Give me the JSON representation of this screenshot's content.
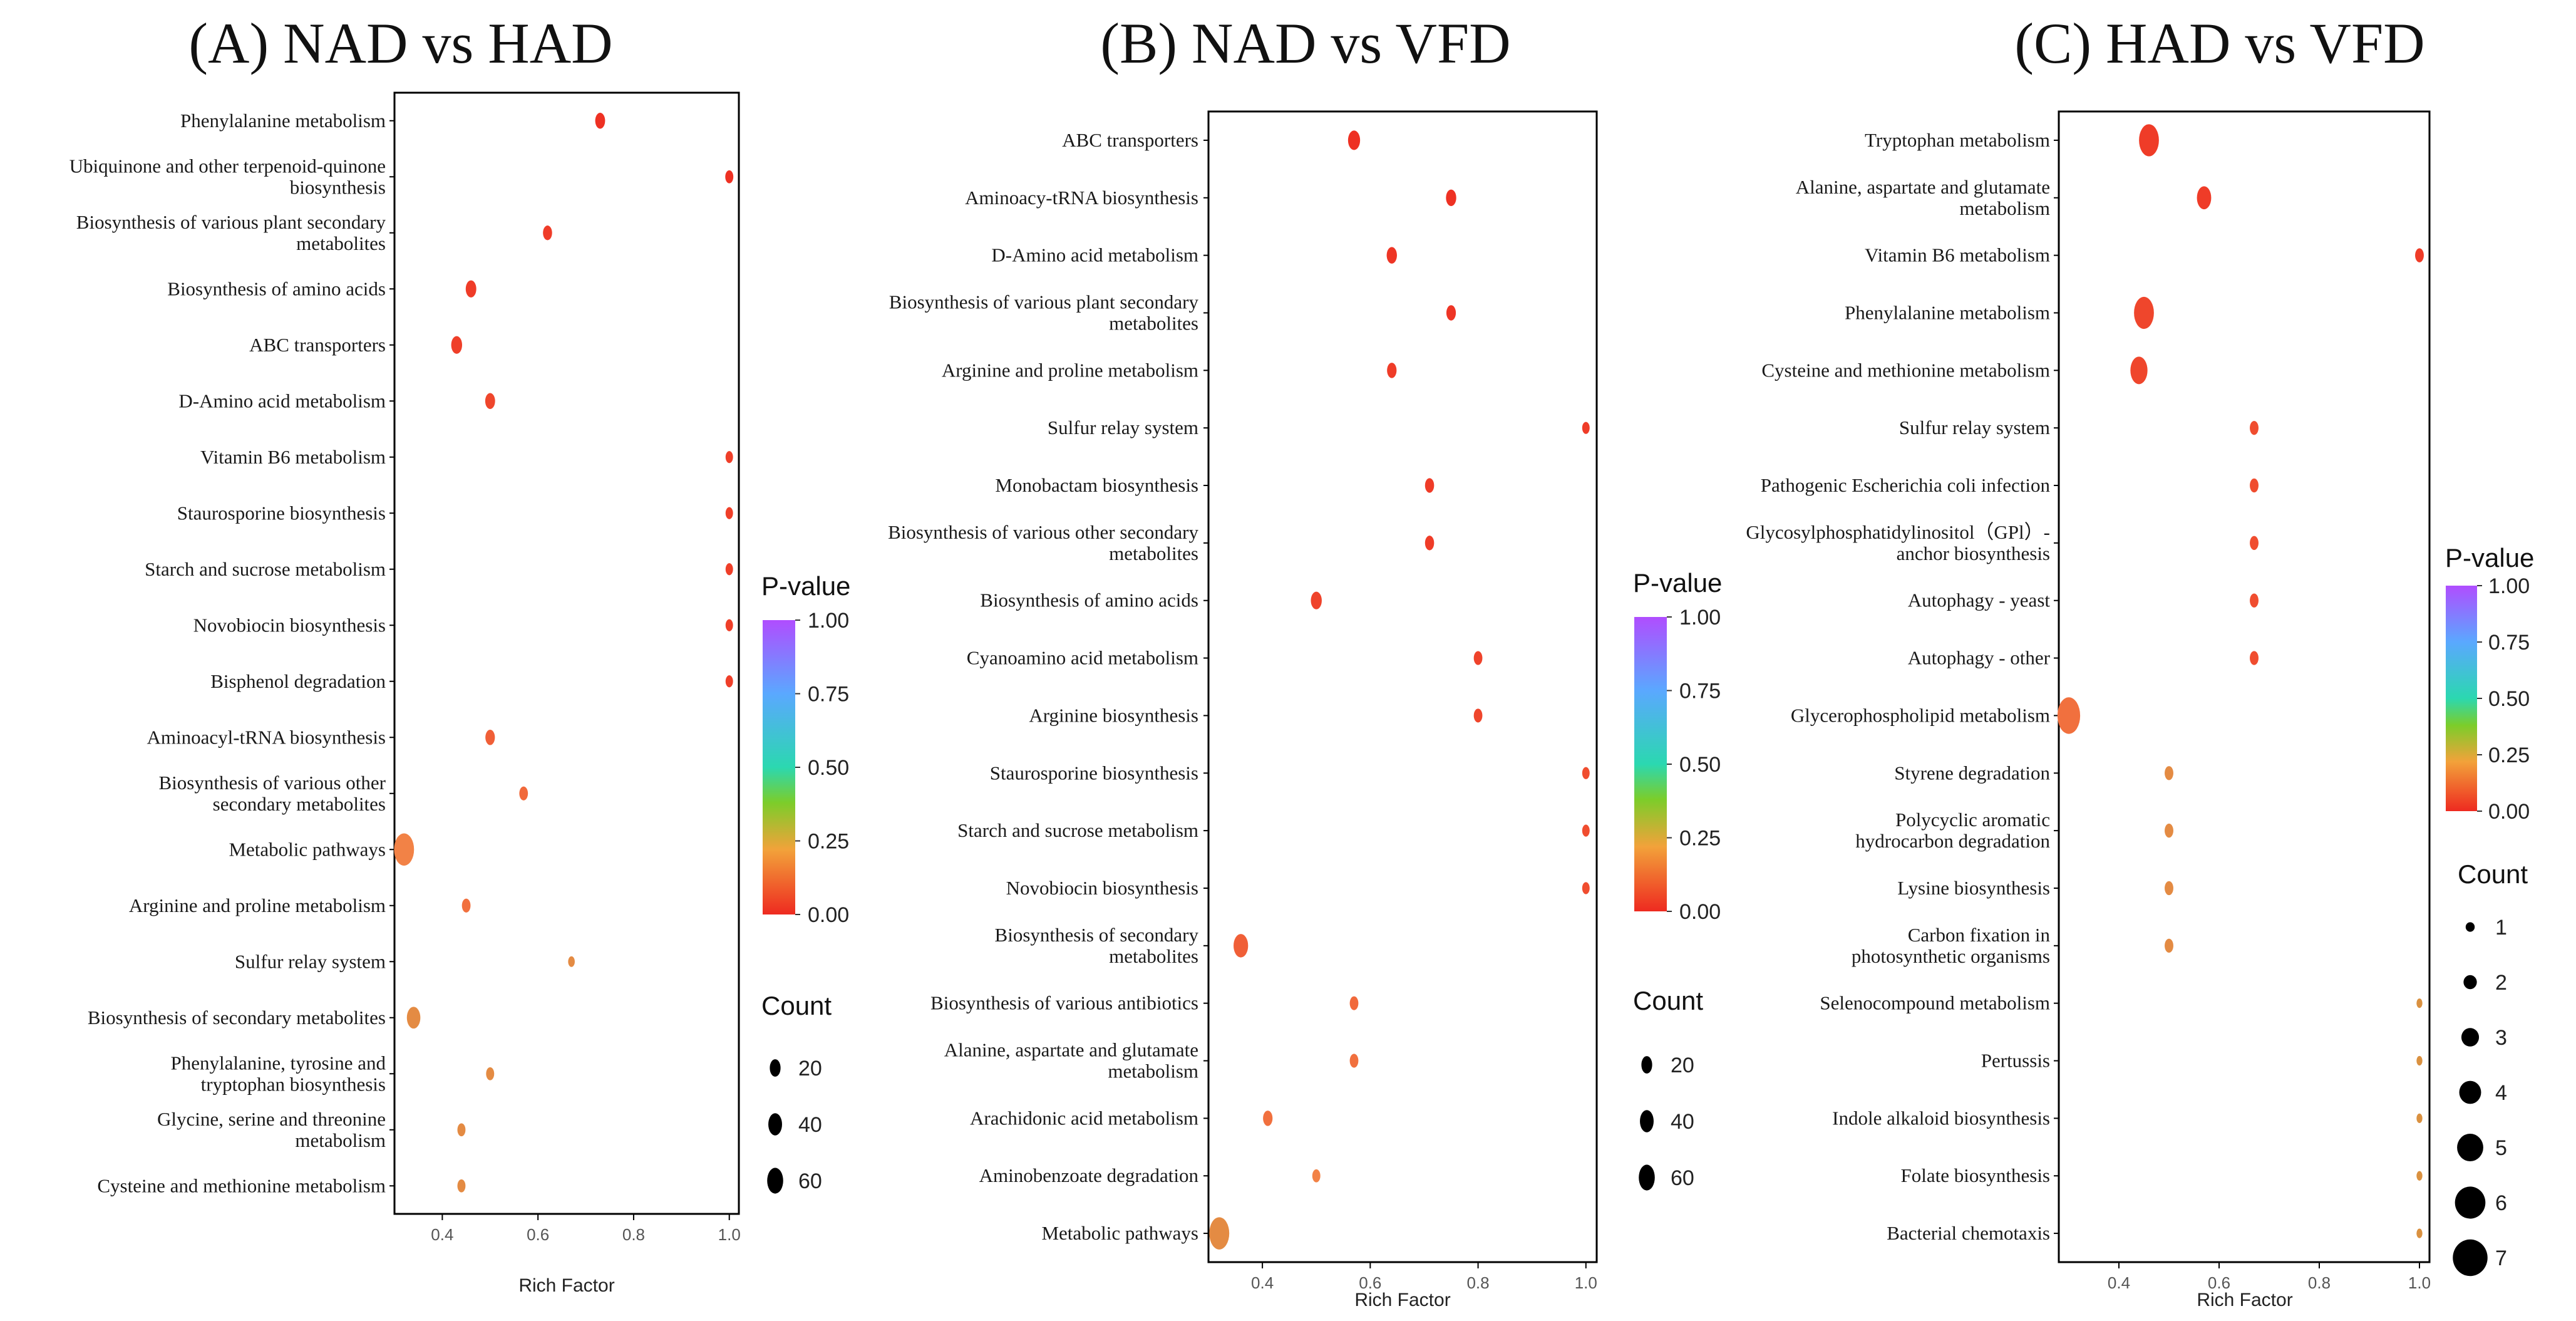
{
  "chart_data": [
    {
      "type": "scatter",
      "title": "(A) NAD vs HAD",
      "xlabel": "Rich Factor",
      "ylabel": "",
      "xlim": [
        0.3,
        1.02
      ],
      "xticks": [
        "0.4",
        "0.6",
        "0.8",
        "1.0"
      ],
      "xtick_values": [
        0.4,
        0.6,
        0.8,
        1.0
      ],
      "categories": [
        "Phenylalanine metabolism",
        "Ubiquinone and other terpenoid-quinone\nbiosynthesis",
        "Biosynthesis of various plant secondary\nmetabolites",
        "Biosynthesis of amino acids",
        "ABC transporters",
        "D-Amino acid metabolism",
        "Vitamin B6 metabolism",
        "Staurosporine biosynthesis",
        "Starch and sucrose metabolism",
        "Novobiocin biosynthesis",
        "Bisphenol degradation",
        "Aminoacyl-tRNA biosynthesis",
        "Biosynthesis of various other\nsecondary metabolites",
        "Metabolic pathways",
        "Arginine and proline metabolism",
        "Sulfur relay system",
        "Biosynthesis of secondary metabolites",
        "Phenylalanine, tyrosine and\ntryptophan biosynthesis",
        "Glycine, serine and threonine\nmetabolism",
        "Cysteine and methionine metabolism"
      ],
      "rich_factor": [
        0.73,
        1.0,
        0.62,
        0.46,
        0.43,
        0.5,
        1.0,
        1.0,
        1.0,
        1.0,
        1.0,
        0.5,
        0.57,
        0.32,
        0.45,
        0.67,
        0.34,
        0.5,
        0.44,
        0.44
      ],
      "count": [
        7,
        3,
        5,
        9,
        10,
        7,
        2,
        2,
        2,
        2,
        2,
        6,
        4,
        60,
        4,
        1,
        20,
        3,
        3,
        3
      ],
      "p_value": [
        0.02,
        0.02,
        0.05,
        0.05,
        0.06,
        0.08,
        0.06,
        0.06,
        0.06,
        0.06,
        0.06,
        0.15,
        0.18,
        0.25,
        0.2,
        0.28,
        0.28,
        0.28,
        0.28,
        0.28
      ],
      "legend": {
        "pvalue_title": "P-value",
        "pvalue_ticks": [
          "1.00",
          "0.75",
          "0.50",
          "0.25",
          "0.00"
        ],
        "count_title": "Count",
        "count_values": [
          "20",
          "40",
          "60"
        ]
      }
    },
    {
      "type": "scatter",
      "title": "(B) NAD vs VFD",
      "xlabel": "Rich Factor",
      "ylabel": "",
      "xlim": [
        0.3,
        1.02
      ],
      "xticks": [
        "0.4",
        "0.6",
        "0.8",
        "1.0"
      ],
      "xtick_values": [
        0.4,
        0.6,
        0.8,
        1.0
      ],
      "categories": [
        "ABC transporters",
        "Aminoacy-tRNA biosynthesis",
        "D-Amino acid metabolism",
        "Biosynthesis of various plant secondary\nmetabolites",
        "Arginine and proline metabolism",
        "Sulfur relay system",
        "Monobactam biosynthesis",
        "Biosynthesis of various other secondary\nmetabolites",
        "Biosynthesis of amino acids",
        "Cyanoamino acid metabolism",
        "Arginine biosynthesis",
        "Staurosporine biosynthesis",
        "Starch and sucrose metabolism",
        "Novobiocin biosynthesis",
        "Biosynthesis of secondary\nmetabolites",
        "Biosynthesis of various antibiotics",
        "Alanine, aspartate and glutamate\nmetabolism",
        "Arachidonic acid metabolism",
        "Aminobenzoate degradation",
        "Metabolic pathways"
      ],
      "rich_factor": [
        0.57,
        0.75,
        0.64,
        0.75,
        0.64,
        1.0,
        0.71,
        0.71,
        0.5,
        0.8,
        0.8,
        1.0,
        1.0,
        1.0,
        0.36,
        0.57,
        0.57,
        0.41,
        0.5,
        0.32
      ],
      "count": [
        14,
        8,
        8,
        6,
        6,
        2,
        5,
        5,
        10,
        4,
        4,
        2,
        2,
        2,
        25,
        4,
        4,
        6,
        3,
        60
      ],
      "p_value": [
        0.02,
        0.02,
        0.03,
        0.03,
        0.05,
        0.05,
        0.05,
        0.05,
        0.07,
        0.07,
        0.08,
        0.1,
        0.1,
        0.1,
        0.15,
        0.18,
        0.2,
        0.2,
        0.25,
        0.28
      ],
      "legend": {
        "pvalue_title": "P-value",
        "pvalue_ticks": [
          "1.00",
          "0.75",
          "0.50",
          "0.25",
          "0.00"
        ],
        "count_title": "Count",
        "count_values": [
          "20",
          "40",
          "60"
        ]
      }
    },
    {
      "type": "scatter",
      "title": "(C) HAD vs VFD",
      "xlabel": "Rich Factor",
      "ylabel": "",
      "xlim": [
        0.28,
        1.02
      ],
      "xticks": [
        "0.4",
        "0.6",
        "0.8",
        "1.0"
      ],
      "xtick_values": [
        0.4,
        0.6,
        0.8,
        1.0
      ],
      "categories": [
        "Tryptophan metabolism",
        "Alanine, aspartate and glutamate\nmetabolism",
        "Vitamin B6 metabolism",
        "Phenylalanine metabolism",
        "Cysteine and methionine metabolism",
        "Sulfur relay system",
        "Pathogenic Escherichia coli infection",
        "Glycosylphosphatidylinositol（GPl）-\nanchor biosynthesis",
        "Autophagy - yeast",
        "Autophagy - other",
        "Glycerophospholipid metabolism",
        "Styrene degradation",
        "Polycyclic aromatic\nhydrocarbon degradation",
        "Lysine biosynthesis",
        "Carbon fixation in\nphotosynthetic organisms",
        "Selenocompound metabolism",
        "Pertussis",
        "Indole alkaloid biosynthesis",
        "Folate biosynthesis",
        "Bacterial chemotaxis"
      ],
      "rich_factor": [
        0.46,
        0.57,
        1.0,
        0.45,
        0.44,
        0.67,
        0.67,
        0.67,
        0.67,
        0.67,
        0.3,
        0.5,
        0.5,
        0.5,
        0.5,
        1.0,
        1.0,
        1.0,
        1.0,
        1.0
      ],
      "count": [
        6,
        4,
        2,
        6,
        5,
        2,
        2,
        2,
        2,
        2,
        7,
        2,
        2,
        2,
        2,
        1,
        1,
        1,
        1,
        1
      ],
      "p_value": [
        0.05,
        0.05,
        0.05,
        0.08,
        0.08,
        0.1,
        0.1,
        0.1,
        0.1,
        0.1,
        0.2,
        0.28,
        0.28,
        0.28,
        0.28,
        0.3,
        0.3,
        0.3,
        0.3,
        0.3
      ],
      "legend": {
        "pvalue_title": "P-value",
        "pvalue_ticks": [
          "1.00",
          "0.75",
          "0.50",
          "0.25",
          "0.00"
        ],
        "count_title": "Count",
        "count_values": [
          "1",
          "2",
          "3",
          "4",
          "5",
          "6",
          "7"
        ]
      }
    }
  ]
}
